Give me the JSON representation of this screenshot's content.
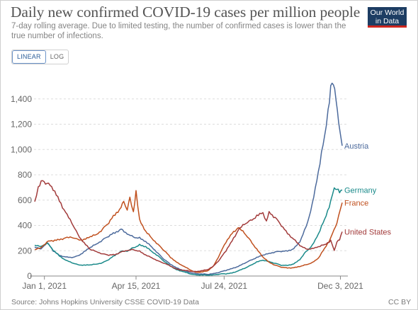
{
  "header": {
    "title": "Daily new confirmed COVID-19 cases per million people",
    "subtitle": "7-day rolling average. Due to limited testing, the number of confirmed cases is lower than the true number of infections.",
    "logo_line1": "Our World",
    "logo_line2": "in Data"
  },
  "controls": {
    "linear_label": "LINEAR",
    "log_label": "LOG"
  },
  "footer": {
    "source": "Source: Johns Hopkins University CSSE COVID-19 Data",
    "license": "CC BY"
  },
  "chart_data": {
    "type": "line",
    "title": "Daily new confirmed COVID-19 cases per million people",
    "subtitle": "7-day rolling average. Due to limited testing, the number of confirmed cases is lower than the true number of infections.",
    "xlabel": "",
    "ylabel": "",
    "x_range": [
      "2020-12-21",
      "2021-12-05"
    ],
    "ylim": [
      0,
      1600
    ],
    "y_ticks": [
      0,
      200,
      400,
      600,
      800,
      1000,
      1200,
      1400
    ],
    "y_tick_labels": [
      "0",
      "200",
      "400",
      "600",
      "800",
      "1,000",
      "1,200",
      "1,400"
    ],
    "x_ticks": [
      "2021-01-01",
      "2021-04-15",
      "2021-07-24",
      "2021-12-03"
    ],
    "x_tick_labels": [
      "Jan 1, 2021",
      "Apr 15, 2021",
      "Jul 24, 2021",
      "Dec 3, 2021"
    ],
    "grid": "horizontal",
    "legend": "inline-right",
    "series": [
      {
        "name": "Austria",
        "color": "#4c6a9c",
        "points": [
          [
            "2020-12-21",
            230
          ],
          [
            "2020-12-28",
            215
          ],
          [
            "2021-01-04",
            265
          ],
          [
            "2021-01-11",
            200
          ],
          [
            "2021-01-18",
            165
          ],
          [
            "2021-01-25",
            150
          ],
          [
            "2021-02-01",
            145
          ],
          [
            "2021-02-08",
            160
          ],
          [
            "2021-02-15",
            190
          ],
          [
            "2021-02-22",
            225
          ],
          [
            "2021-03-01",
            255
          ],
          [
            "2021-03-08",
            285
          ],
          [
            "2021-03-15",
            315
          ],
          [
            "2021-03-22",
            345
          ],
          [
            "2021-03-29",
            370
          ],
          [
            "2021-04-05",
            330
          ],
          [
            "2021-04-12",
            310
          ],
          [
            "2021-04-19",
            300
          ],
          [
            "2021-04-26",
            270
          ],
          [
            "2021-05-03",
            230
          ],
          [
            "2021-05-10",
            180
          ],
          [
            "2021-05-17",
            130
          ],
          [
            "2021-05-24",
            95
          ],
          [
            "2021-05-31",
            65
          ],
          [
            "2021-06-07",
            45
          ],
          [
            "2021-06-14",
            30
          ],
          [
            "2021-06-21",
            20
          ],
          [
            "2021-06-28",
            15
          ],
          [
            "2021-07-05",
            14
          ],
          [
            "2021-07-12",
            20
          ],
          [
            "2021-07-19",
            30
          ],
          [
            "2021-07-26",
            45
          ],
          [
            "2021-08-02",
            60
          ],
          [
            "2021-08-09",
            75
          ],
          [
            "2021-08-16",
            100
          ],
          [
            "2021-08-23",
            125
          ],
          [
            "2021-08-30",
            145
          ],
          [
            "2021-09-06",
            165
          ],
          [
            "2021-09-13",
            180
          ],
          [
            "2021-09-20",
            190
          ],
          [
            "2021-09-27",
            195
          ],
          [
            "2021-10-04",
            200
          ],
          [
            "2021-10-11",
            215
          ],
          [
            "2021-10-18",
            270
          ],
          [
            "2021-10-25",
            390
          ],
          [
            "2021-11-01",
            560
          ],
          [
            "2021-11-08",
            820
          ],
          [
            "2021-11-15",
            1110
          ],
          [
            "2021-11-19",
            1320
          ],
          [
            "2021-11-22",
            1490
          ],
          [
            "2021-11-25",
            1540
          ],
          [
            "2021-11-28",
            1400
          ],
          [
            "2021-12-01",
            1200
          ],
          [
            "2021-12-05",
            1030
          ]
        ]
      },
      {
        "name": "Germany",
        "color": "#1a8a8a",
        "points": [
          [
            "2020-12-21",
            245
          ],
          [
            "2020-12-28",
            235
          ],
          [
            "2021-01-04",
            260
          ],
          [
            "2021-01-11",
            205
          ],
          [
            "2021-01-18",
            160
          ],
          [
            "2021-01-25",
            125
          ],
          [
            "2021-02-01",
            105
          ],
          [
            "2021-02-08",
            90
          ],
          [
            "2021-02-15",
            85
          ],
          [
            "2021-02-22",
            88
          ],
          [
            "2021-03-01",
            95
          ],
          [
            "2021-03-08",
            105
          ],
          [
            "2021-03-15",
            130
          ],
          [
            "2021-03-22",
            165
          ],
          [
            "2021-03-29",
            195
          ],
          [
            "2021-04-05",
            195
          ],
          [
            "2021-04-12",
            225
          ],
          [
            "2021-04-19",
            245
          ],
          [
            "2021-04-26",
            230
          ],
          [
            "2021-05-03",
            195
          ],
          [
            "2021-05-10",
            160
          ],
          [
            "2021-05-17",
            115
          ],
          [
            "2021-05-24",
            80
          ],
          [
            "2021-05-31",
            50
          ],
          [
            "2021-06-07",
            35
          ],
          [
            "2021-06-14",
            20
          ],
          [
            "2021-06-21",
            10
          ],
          [
            "2021-06-28",
            7
          ],
          [
            "2021-07-05",
            7
          ],
          [
            "2021-07-12",
            10
          ],
          [
            "2021-07-19",
            15
          ],
          [
            "2021-07-26",
            18
          ],
          [
            "2021-08-02",
            25
          ],
          [
            "2021-08-09",
            40
          ],
          [
            "2021-08-16",
            60
          ],
          [
            "2021-08-23",
            85
          ],
          [
            "2021-08-30",
            110
          ],
          [
            "2021-09-06",
            125
          ],
          [
            "2021-09-13",
            115
          ],
          [
            "2021-09-20",
            100
          ],
          [
            "2021-09-27",
            85
          ],
          [
            "2021-10-04",
            85
          ],
          [
            "2021-10-11",
            95
          ],
          [
            "2021-10-18",
            130
          ],
          [
            "2021-10-25",
            195
          ],
          [
            "2021-11-01",
            240
          ],
          [
            "2021-11-08",
            330
          ],
          [
            "2021-11-15",
            450
          ],
          [
            "2021-11-22",
            590
          ],
          [
            "2021-11-26",
            690
          ],
          [
            "2021-11-29",
            690
          ],
          [
            "2021-12-02",
            670
          ],
          [
            "2021-12-05",
            680
          ]
        ]
      },
      {
        "name": "France",
        "color": "#c0501e",
        "points": [
          [
            "2020-12-21",
            210
          ],
          [
            "2020-12-28",
            225
          ],
          [
            "2021-01-04",
            270
          ],
          [
            "2021-01-11",
            280
          ],
          [
            "2021-01-18",
            290
          ],
          [
            "2021-01-25",
            300
          ],
          [
            "2021-02-01",
            305
          ],
          [
            "2021-02-08",
            290
          ],
          [
            "2021-02-15",
            285
          ],
          [
            "2021-02-22",
            310
          ],
          [
            "2021-03-01",
            330
          ],
          [
            "2021-03-08",
            370
          ],
          [
            "2021-03-15",
            420
          ],
          [
            "2021-03-22",
            490
          ],
          [
            "2021-03-29",
            540
          ],
          [
            "2021-04-01",
            590
          ],
          [
            "2021-04-05",
            520
          ],
          [
            "2021-04-08",
            620
          ],
          [
            "2021-04-12",
            510
          ],
          [
            "2021-04-15",
            660
          ],
          [
            "2021-04-19",
            440
          ],
          [
            "2021-04-26",
            350
          ],
          [
            "2021-05-03",
            300
          ],
          [
            "2021-05-10",
            250
          ],
          [
            "2021-05-17",
            200
          ],
          [
            "2021-05-24",
            150
          ],
          [
            "2021-05-31",
            110
          ],
          [
            "2021-06-07",
            80
          ],
          [
            "2021-06-14",
            55
          ],
          [
            "2021-06-21",
            30
          ],
          [
            "2021-06-28",
            30
          ],
          [
            "2021-07-05",
            40
          ],
          [
            "2021-07-12",
            80
          ],
          [
            "2021-07-19",
            170
          ],
          [
            "2021-07-26",
            270
          ],
          [
            "2021-08-02",
            340
          ],
          [
            "2021-08-09",
            380
          ],
          [
            "2021-08-16",
            340
          ],
          [
            "2021-08-23",
            280
          ],
          [
            "2021-08-30",
            210
          ],
          [
            "2021-09-06",
            150
          ],
          [
            "2021-09-13",
            110
          ],
          [
            "2021-09-20",
            85
          ],
          [
            "2021-09-27",
            70
          ],
          [
            "2021-10-04",
            65
          ],
          [
            "2021-10-11",
            65
          ],
          [
            "2021-10-18",
            75
          ],
          [
            "2021-10-25",
            90
          ],
          [
            "2021-11-01",
            105
          ],
          [
            "2021-11-08",
            140
          ],
          [
            "2021-11-15",
            220
          ],
          [
            "2021-11-22",
            300
          ],
          [
            "2021-11-29",
            420
          ],
          [
            "2021-12-05",
            580
          ]
        ]
      },
      {
        "name": "United States",
        "color": "#a23b3b",
        "points": [
          [
            "2020-12-21",
            590
          ],
          [
            "2020-12-25",
            700
          ],
          [
            "2020-12-30",
            760
          ],
          [
            "2021-01-04",
            730
          ],
          [
            "2021-01-11",
            690
          ],
          [
            "2021-01-18",
            600
          ],
          [
            "2021-01-25",
            500
          ],
          [
            "2021-02-01",
            420
          ],
          [
            "2021-02-08",
            330
          ],
          [
            "2021-02-15",
            260
          ],
          [
            "2021-02-22",
            210
          ],
          [
            "2021-03-01",
            195
          ],
          [
            "2021-03-08",
            175
          ],
          [
            "2021-03-15",
            165
          ],
          [
            "2021-03-22",
            170
          ],
          [
            "2021-03-29",
            190
          ],
          [
            "2021-04-05",
            200
          ],
          [
            "2021-04-12",
            210
          ],
          [
            "2021-04-19",
            195
          ],
          [
            "2021-04-26",
            165
          ],
          [
            "2021-05-03",
            145
          ],
          [
            "2021-05-10",
            120
          ],
          [
            "2021-05-17",
            100
          ],
          [
            "2021-05-24",
            80
          ],
          [
            "2021-05-31",
            55
          ],
          [
            "2021-06-07",
            45
          ],
          [
            "2021-06-14",
            40
          ],
          [
            "2021-06-21",
            35
          ],
          [
            "2021-06-28",
            40
          ],
          [
            "2021-07-05",
            50
          ],
          [
            "2021-07-12",
            80
          ],
          [
            "2021-07-19",
            130
          ],
          [
            "2021-07-26",
            200
          ],
          [
            "2021-08-02",
            280
          ],
          [
            "2021-08-09",
            360
          ],
          [
            "2021-08-16",
            410
          ],
          [
            "2021-08-23",
            440
          ],
          [
            "2021-08-30",
            470
          ],
          [
            "2021-09-06",
            500
          ],
          [
            "2021-09-10",
            430
          ],
          [
            "2021-09-13",
            510
          ],
          [
            "2021-09-20",
            460
          ],
          [
            "2021-09-27",
            400
          ],
          [
            "2021-10-04",
            340
          ],
          [
            "2021-10-11",
            290
          ],
          [
            "2021-10-18",
            240
          ],
          [
            "2021-10-25",
            215
          ],
          [
            "2021-11-01",
            215
          ],
          [
            "2021-11-08",
            230
          ],
          [
            "2021-11-15",
            250
          ],
          [
            "2021-11-22",
            280
          ],
          [
            "2021-11-26",
            200
          ],
          [
            "2021-11-29",
            270
          ],
          [
            "2021-12-02",
            290
          ],
          [
            "2021-12-05",
            350
          ]
        ]
      }
    ]
  }
}
